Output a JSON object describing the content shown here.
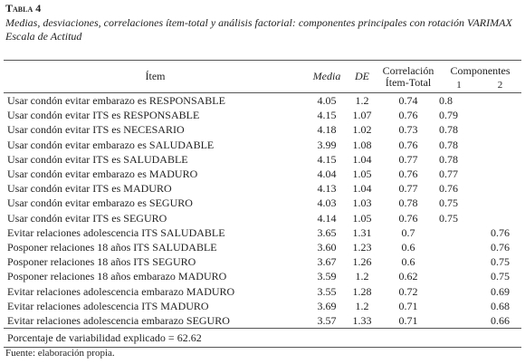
{
  "header": {
    "label": "Tabla 4",
    "caption": "Medias, desviaciones, correlaciones ítem-total y análisis factorial: componentes principales con rotación VARIMAX Escala de Actitud"
  },
  "table": {
    "columns": {
      "item": "Ítem",
      "media": "Media",
      "de": "DE",
      "correlacion": [
        "Correlación",
        "Ítem-Total"
      ],
      "componentes": "Componentes",
      "c1": "1",
      "c2": "2"
    },
    "rows": [
      {
        "item": "Usar condón evitar embarazo es RESPONSABLE",
        "media": "4.05",
        "de": "1.2",
        "correlacion": "0.74",
        "c1": "0.8"
      },
      {
        "item": "Usar condón evitar ITS es RESPONSABLE",
        "media": "4.15",
        "de": "1.07",
        "correlacion": "0.76",
        "c1": "0.79"
      },
      {
        "item": "Usar condón evitar ITS es NECESARIO",
        "media": "4.18",
        "de": "1.02",
        "correlacion": "0.73",
        "c1": "0.78"
      },
      {
        "item": "Usar condón evitar embarazo es SALUDABLE",
        "media": "3.99",
        "de": "1.08",
        "correlacion": "0.76",
        "c1": "0.78"
      },
      {
        "item": "Usar condón evitar ITS es SALUDABLE",
        "media": "4.15",
        "de": "1.04",
        "correlacion": "0.77",
        "c1": "0.78"
      },
      {
        "item": "Usar condón evitar embarazo es MADURO",
        "media": "4.04",
        "de": "1.05",
        "correlacion": "0.76",
        "c1": "0.77"
      },
      {
        "item": "Usar condón evitar ITS es MADURO",
        "media": "4.13",
        "de": "1.04",
        "correlacion": "0.77",
        "c1": "0.76"
      },
      {
        "item": "Usar condón evitar embarazo es SEGURO",
        "media": "4.03",
        "de": "1.03",
        "correlacion": "0.78",
        "c1": "0.75"
      },
      {
        "item": "Usar condón evitar ITS es SEGURO",
        "media": "4.14",
        "de": "1.05",
        "correlacion": "0.76",
        "c1": "0.75"
      },
      {
        "item": "Evitar relaciones adolescencia ITS SALUDABLE",
        "media": "3.65",
        "de": "1.31",
        "correlacion": "0.7",
        "c2": "0.76"
      },
      {
        "item": "Posponer relaciones 18 años ITS SALUDABLE",
        "media": "3.60",
        "de": "1.23",
        "correlacion": "0.6",
        "c2": "0.76"
      },
      {
        "item": "Posponer relaciones 18 años ITS SEGURO",
        "media": "3.67",
        "de": "1.26",
        "correlacion": "0.6",
        "c2": "0.75"
      },
      {
        "item": "Posponer relaciones 18 años embarazo MADURO",
        "media": "3.59",
        "de": "1.2",
        "correlacion": "0.62",
        "c2": "0.75"
      },
      {
        "item": "Evitar relaciones adolescencia embarazo MADURO",
        "media": "3.55",
        "de": "1.28",
        "correlacion": "0.72",
        "c2": "0.69"
      },
      {
        "item": "Evitar relaciones adolescencia ITS MADURO",
        "media": "3.69",
        "de": "1.2",
        "correlacion": "0.71",
        "c2": "0.68"
      },
      {
        "item": "Evitar relaciones adolescencia embarazo SEGURO",
        "media": "3.57",
        "de": "1.33",
        "correlacion": "0.71",
        "c2": "0.66"
      }
    ],
    "footer": "Porcentaje de variabilidad explicado = 62.62"
  },
  "source": "Fuente: elaboración propia."
}
